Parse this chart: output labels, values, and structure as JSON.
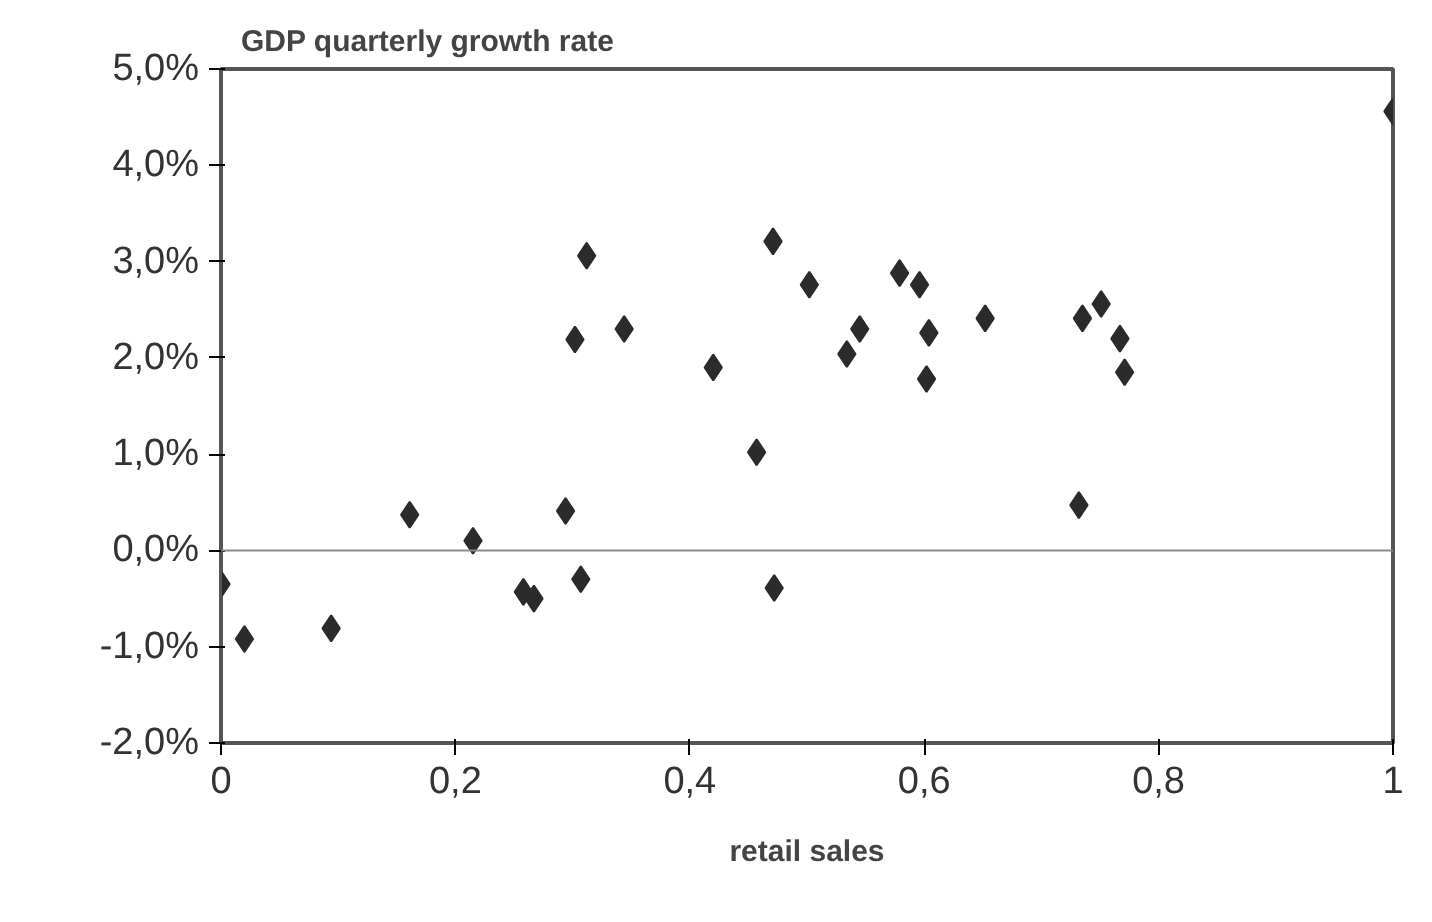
{
  "chart_data": {
    "type": "scatter",
    "title": "GDP quarterly growth rate",
    "xlabel": "retail sales",
    "x": [
      0,
      0.02,
      0.094,
      0.161,
      0.215,
      0.258,
      0.267,
      0.294,
      0.302,
      0.307,
      0.312,
      0.344,
      0.42,
      0.457,
      0.471,
      0.472,
      0.502,
      0.534,
      0.545,
      0.579,
      0.596,
      0.604,
      0.602,
      0.652,
      0.735,
      0.751,
      0.732,
      0.767,
      0.771,
      1.0
    ],
    "series": [
      {
        "color": "#2b2b2b",
        "values": [
          -0.35,
          -0.92,
          -0.81,
          0.37,
          0.1,
          -0.43,
          -0.5,
          0.41,
          2.19,
          -0.3,
          3.06,
          2.3,
          1.9,
          1.02,
          3.21,
          -0.39,
          2.76,
          2.04,
          2.3,
          2.88,
          2.76,
          2.26,
          1.78,
          2.41,
          2.41,
          2.56,
          0.47,
          2.2,
          1.85,
          4.56
        ]
      }
    ],
    "xlim": [
      0,
      1
    ],
    "ylim": [
      -2,
      5
    ],
    "xticks": [
      0,
      {
        "value": 0.2,
        "label": "0,2"
      },
      {
        "value": 0.4,
        "label": "0,4"
      },
      {
        "value": 0.6,
        "label": "0,6"
      },
      {
        "value": 0.8,
        "label": "0,8"
      },
      1
    ],
    "yticks": [
      {
        "value": -2,
        "label": "-2,0%"
      },
      {
        "value": -1,
        "label": "-1,0%"
      },
      {
        "value": 0,
        "label": "0,0%"
      },
      {
        "value": 1,
        "label": "1,0%"
      },
      {
        "value": 2,
        "label": "2,0%"
      },
      {
        "value": 3,
        "label": "3,0%"
      },
      {
        "value": 4,
        "label": "4,0%"
      },
      {
        "value": 5,
        "label": "5,0%"
      }
    ],
    "ref_lines": [
      {
        "axis": "y",
        "value": 0,
        "color": "#8a8a8a"
      }
    ],
    "grid": false,
    "marker": "diamond"
  }
}
